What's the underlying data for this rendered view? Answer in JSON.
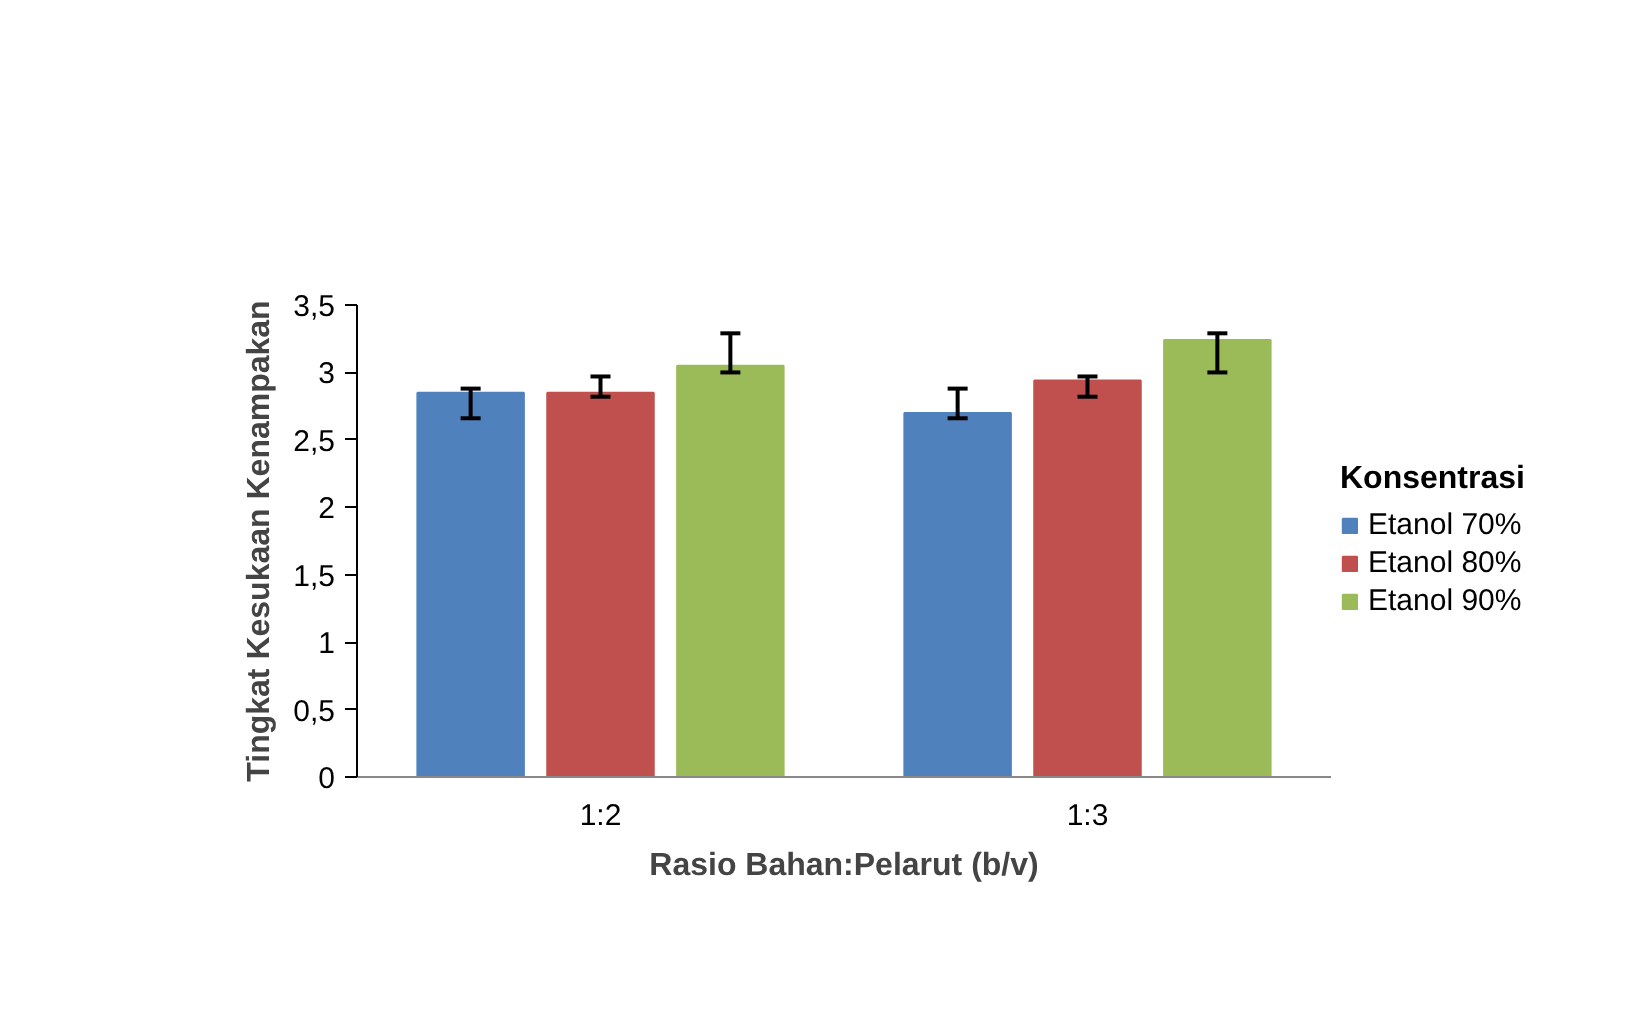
{
  "chart_data": {
    "type": "bar",
    "xlabel": "Rasio Bahan:Pelarut (b/v)",
    "ylabel": "Tingkat Kesukaan Kenampakan",
    "legend_title": "Konsentrasi",
    "categories": [
      "1:2",
      "1:3"
    ],
    "series": [
      {
        "name": "Etanol 70%",
        "color": "#4f81bd",
        "values": [
          2.85,
          2.7
        ],
        "errors": [
          [
            2.66,
            2.88
          ],
          [
            2.66,
            2.88
          ]
        ]
      },
      {
        "name": "Etanol 80%",
        "color": "#c0504d",
        "values": [
          2.85,
          2.94
        ],
        "errors": [
          [
            2.82,
            2.97
          ],
          [
            2.82,
            2.97
          ]
        ]
      },
      {
        "name": "Etanol 90%",
        "color": "#9bbb59",
        "values": [
          3.05,
          3.24
        ],
        "errors": [
          [
            3.0,
            3.29
          ],
          [
            3.0,
            3.29
          ]
        ]
      }
    ],
    "ylim": [
      0,
      3.5
    ],
    "yticks": [
      0,
      {
        "value": 0.5,
        "label": "0,5"
      },
      1,
      {
        "value": 1.5,
        "label": "1,5"
      },
      2,
      {
        "value": 2.5,
        "label": "2,5"
      },
      3,
      {
        "value": 3.5,
        "label": "3,5"
      }
    ],
    "grid": false,
    "legend": "right"
  }
}
